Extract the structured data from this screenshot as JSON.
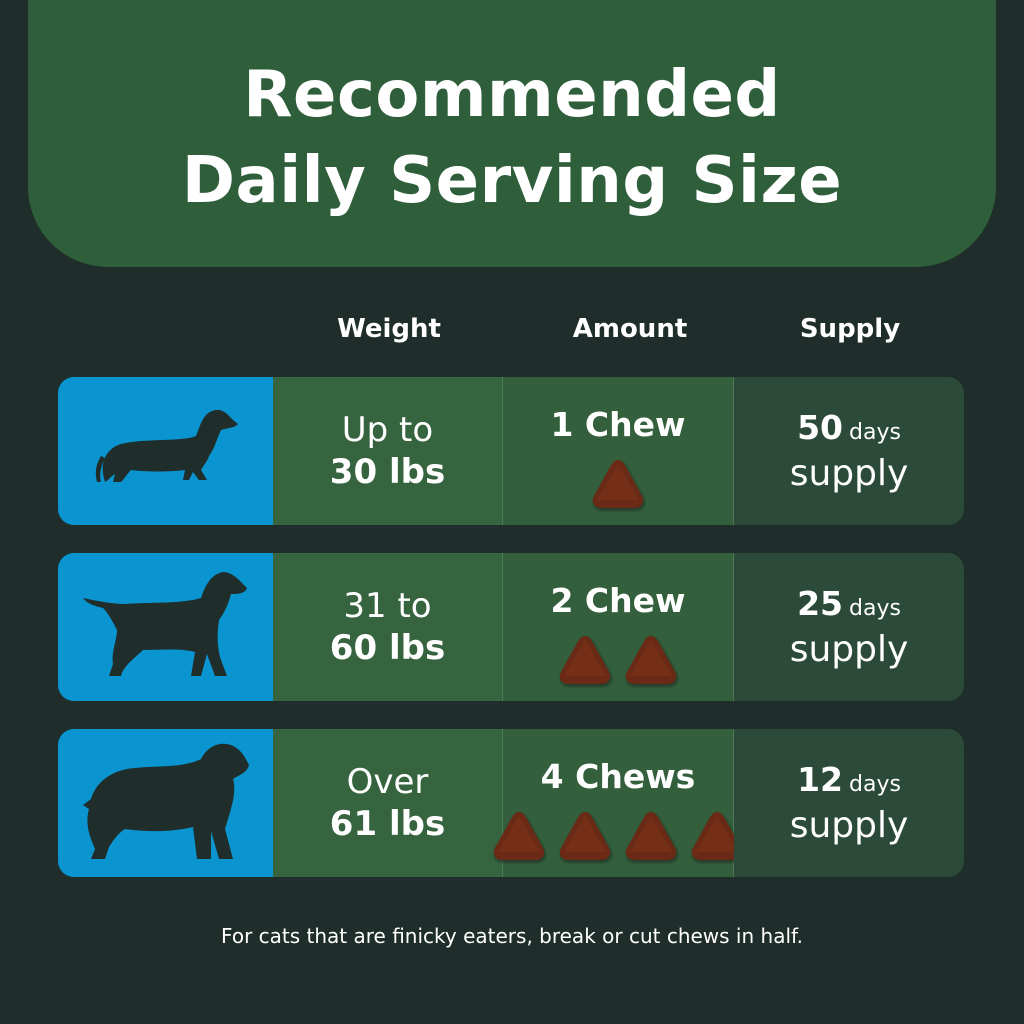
{
  "title": {
    "line1": "Recommended",
    "line2": "Daily Serving Size"
  },
  "columns": [
    "Weight",
    "Amount",
    "Supply"
  ],
  "rows": [
    {
      "icon": "dachshund-icon",
      "weight_line1": "Up to",
      "weight_line2": "30 lbs",
      "amount": "1 Chew",
      "chews": 1,
      "supply_num": "50",
      "supply_unit": "days",
      "supply_word": "supply"
    },
    {
      "icon": "labrador-icon",
      "weight_line1": "31 to",
      "weight_line2": "60 lbs",
      "amount": "2 Chew",
      "chews": 2,
      "supply_num": "25",
      "supply_unit": "days",
      "supply_word": "supply"
    },
    {
      "icon": "large-dog-icon",
      "weight_line1": "Over",
      "weight_line2": "61 lbs",
      "amount": "4 Chews",
      "chews": 4,
      "supply_num": "12",
      "supply_unit": "days",
      "supply_word": "supply"
    }
  ],
  "footnote": "For cats that are finicky eaters, break or cut chews in half.",
  "colors": {
    "background": "#1f2e2b",
    "header": "#2f5e3b",
    "icon_cell": "#0a95d0",
    "weight_cell": "#36643f",
    "amount_cell": "#335f3d",
    "supply_cell": "#2b4a39",
    "chew": "#6b2a12"
  }
}
